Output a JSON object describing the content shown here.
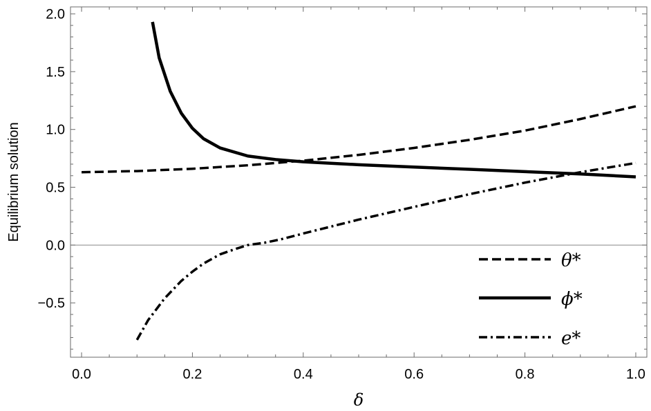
{
  "chart_data": {
    "type": "line",
    "xlabel": "δ",
    "ylabel": "Equilibrium solution",
    "xlim": [
      -0.02,
      1.02
    ],
    "ylim": [
      -0.97,
      2.06
    ],
    "x_ticks": [
      "0.0",
      "0.2",
      "0.4",
      "0.6",
      "0.8",
      "1.0"
    ],
    "x_tick_values": [
      0.0,
      0.2,
      0.4,
      0.6,
      0.8,
      1.0
    ],
    "y_ticks": [
      "−0.5",
      "0.0",
      "0.5",
      "1.0",
      "1.5",
      "2.0"
    ],
    "y_tick_values": [
      -0.5,
      0.0,
      0.5,
      1.0,
      1.5,
      2.0
    ],
    "zero_line": true,
    "grid": false,
    "legend_position": "bottom-right",
    "series": [
      {
        "name": "θ*",
        "style": "dashed",
        "color": "#000000",
        "x": [
          0.0,
          0.1,
          0.2,
          0.3,
          0.4,
          0.5,
          0.6,
          0.7,
          0.8,
          0.9,
          1.0
        ],
        "y": [
          0.63,
          0.64,
          0.66,
          0.69,
          0.73,
          0.78,
          0.84,
          0.91,
          0.99,
          1.09,
          1.2
        ]
      },
      {
        "name": "ϕ*",
        "style": "solid",
        "color": "#000000",
        "x": [
          0.128,
          0.14,
          0.16,
          0.18,
          0.2,
          0.22,
          0.25,
          0.3,
          0.35,
          0.4,
          0.5,
          0.6,
          0.7,
          0.8,
          0.9,
          1.0
        ],
        "y": [
          1.93,
          1.62,
          1.33,
          1.14,
          1.01,
          0.92,
          0.84,
          0.77,
          0.74,
          0.72,
          0.695,
          0.675,
          0.655,
          0.635,
          0.615,
          0.59
        ]
      },
      {
        "name": "e*",
        "style": "dashdot",
        "color": "#000000",
        "x": [
          0.1,
          0.12,
          0.15,
          0.18,
          0.2,
          0.22,
          0.25,
          0.28,
          0.3,
          0.33,
          0.36,
          0.4,
          0.5,
          0.6,
          0.7,
          0.8,
          0.9,
          1.0
        ],
        "y": [
          -0.82,
          -0.65,
          -0.46,
          -0.31,
          -0.23,
          -0.16,
          -0.08,
          -0.03,
          0.0,
          0.02,
          0.05,
          0.1,
          0.22,
          0.33,
          0.44,
          0.54,
          0.63,
          0.71
        ]
      }
    ]
  }
}
